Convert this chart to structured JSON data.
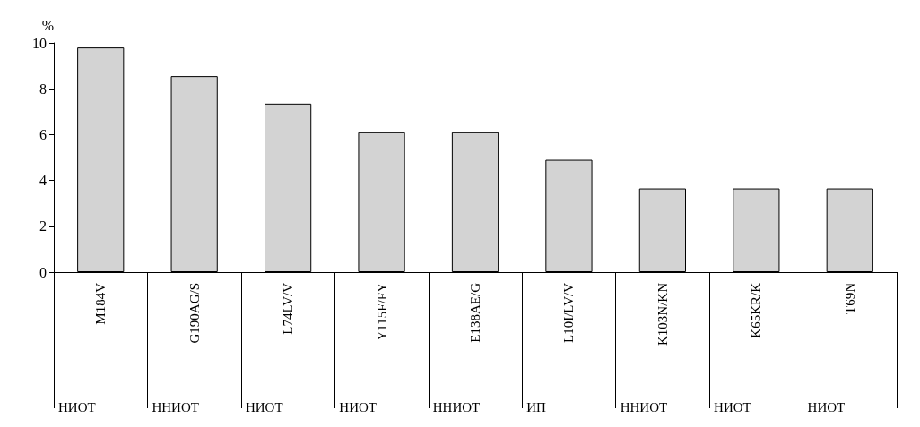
{
  "chart_data": {
    "type": "bar",
    "ylabel": "%",
    "categories": [
      "M184V",
      "G190AG/S",
      "L74LV/V",
      "Y115F/FY",
      "E138AE/G",
      "L10I/LV/V",
      "K103N/KN",
      "K65KR/K",
      "T69N"
    ],
    "values": [
      9.8,
      8.55,
      7.35,
      6.1,
      6.1,
      4.9,
      3.65,
      3.65,
      3.65
    ],
    "color": "#d3d3d3",
    "ylim": [
      0,
      10
    ],
    "yticks": [
      0,
      2,
      4,
      6,
      8,
      10
    ],
    "grid": false,
    "annotations": [
      "НИОТ",
      "ННИОТ",
      "НИОТ",
      "НИОТ",
      "ННИОТ",
      "ИП",
      "ННИОТ",
      "НИОТ",
      "НИОТ"
    ]
  }
}
